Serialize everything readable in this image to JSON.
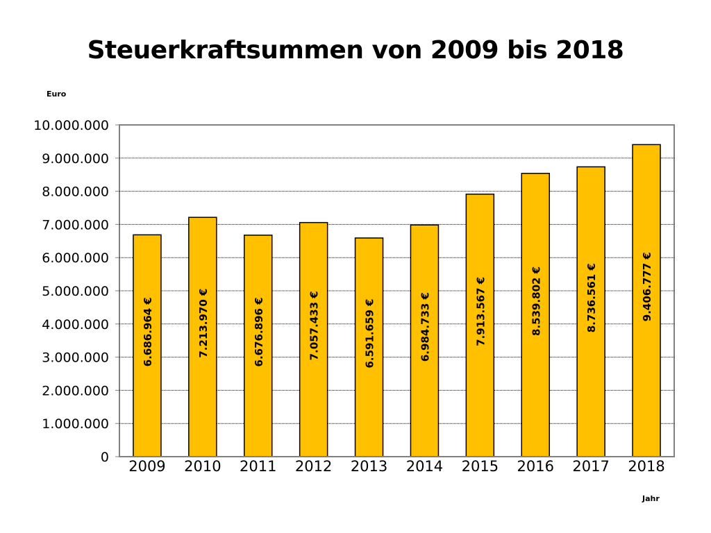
{
  "chart_data": {
    "type": "bar",
    "title": "Steuerkraftsummen von 2009 bis 2018",
    "ylabel": "Euro",
    "xlabel": "Jahr",
    "categories": [
      "2009",
      "2010",
      "2011",
      "2012",
      "2013",
      "2014",
      "2015",
      "2016",
      "2017",
      "2018"
    ],
    "values": [
      6686964,
      7213970,
      6676896,
      7057433,
      6591659,
      6984733,
      7913567,
      8539802,
      8736561,
      9406777
    ],
    "data_labels": [
      "6.686.964 €",
      "7.213.970 €",
      "6.676.896 €",
      "7.057.433 €",
      "6.591.659 €",
      "6.984.733 €",
      "7.913.567 €",
      "8.539.802 €",
      "8.736.561 €",
      "9.406.777 €"
    ],
    "yticks": [
      "0",
      "1.000.000",
      "2.000.000",
      "3.000.000",
      "4.000.000",
      "5.000.000",
      "6.000.000",
      "7.000.000",
      "8.000.000",
      "9.000.000",
      "10.000.000"
    ],
    "ylim": [
      0,
      10000000
    ],
    "grid": true,
    "legend": "none",
    "colors": {
      "bar": "#FFC000",
      "bar_border": "#000000",
      "grid": "#000000",
      "frame": "#808080"
    }
  }
}
